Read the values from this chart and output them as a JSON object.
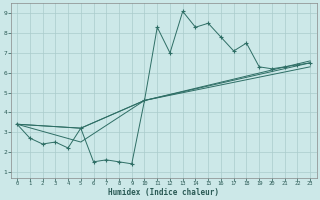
{
  "xlabel": "Humidex (Indice chaleur)",
  "bg_color": "#cce8e8",
  "grid_color": "#aacccc",
  "line_color": "#2e6e65",
  "xlim": [
    -0.5,
    23.5
  ],
  "ylim": [
    0.7,
    9.5
  ],
  "xticks": [
    0,
    1,
    2,
    3,
    4,
    5,
    6,
    7,
    8,
    9,
    10,
    11,
    12,
    13,
    14,
    15,
    16,
    17,
    18,
    19,
    20,
    21,
    22,
    23
  ],
  "yticks": [
    1,
    2,
    3,
    4,
    5,
    6,
    7,
    8,
    9
  ],
  "main_series": {
    "x": [
      0,
      1,
      2,
      3,
      4,
      5,
      6,
      7,
      8,
      9,
      10,
      11,
      12,
      13,
      14,
      15,
      16,
      17,
      18,
      19,
      20,
      21,
      22,
      23
    ],
    "y": [
      3.4,
      2.7,
      2.4,
      2.5,
      2.2,
      3.2,
      1.5,
      1.6,
      1.5,
      1.4,
      4.6,
      8.3,
      7.0,
      9.1,
      8.3,
      8.5,
      7.8,
      7.1,
      7.5,
      6.3,
      6.2,
      6.3,
      6.4,
      6.5
    ]
  },
  "trend_lines": [
    {
      "x": [
        0,
        5,
        10,
        23
      ],
      "y": [
        3.4,
        3.2,
        4.6,
        6.6
      ]
    },
    {
      "x": [
        0,
        5,
        10,
        23
      ],
      "y": [
        3.4,
        3.2,
        4.6,
        6.5
      ]
    },
    {
      "x": [
        0,
        5,
        10,
        23
      ],
      "y": [
        3.4,
        2.5,
        4.6,
        6.3
      ]
    }
  ]
}
